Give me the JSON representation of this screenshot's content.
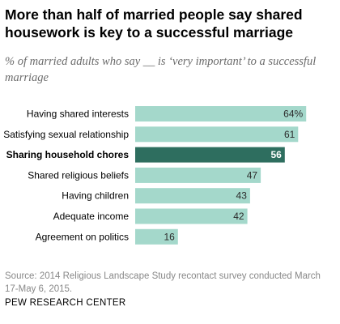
{
  "header": {
    "title": "More than half of married people say shared housework is key to a successful marriage",
    "subtitle": "% of married adults who say __ is ‘very important’ to a successful marriage"
  },
  "chart_data": {
    "type": "bar",
    "orientation": "horizontal",
    "title": "",
    "xlabel": "",
    "ylabel": "",
    "categories": [
      "Having shared interests",
      "Satisfying sexual relationship",
      "Sharing household chores",
      "Shared religious beliefs",
      "Having children",
      "Adequate income",
      "Agreement on politics"
    ],
    "values": [
      64,
      61,
      56,
      47,
      43,
      42,
      16
    ],
    "value_labels": [
      "64%",
      "61",
      "56",
      "47",
      "43",
      "42",
      "16"
    ],
    "highlight_index": 2,
    "xlim": [
      0,
      100
    ],
    "grid": false,
    "colors": {
      "bar": "#a4d8cb",
      "highlight": "#2e6e5f",
      "label": "#2b2b2b",
      "highlight_label": "#ffffff"
    }
  },
  "footer": {
    "source": "Source: 2014 Religious Landscape Study recontact survey conducted March 17-May 6, 2015.",
    "brand": "PEW RESEARCH CENTER"
  }
}
